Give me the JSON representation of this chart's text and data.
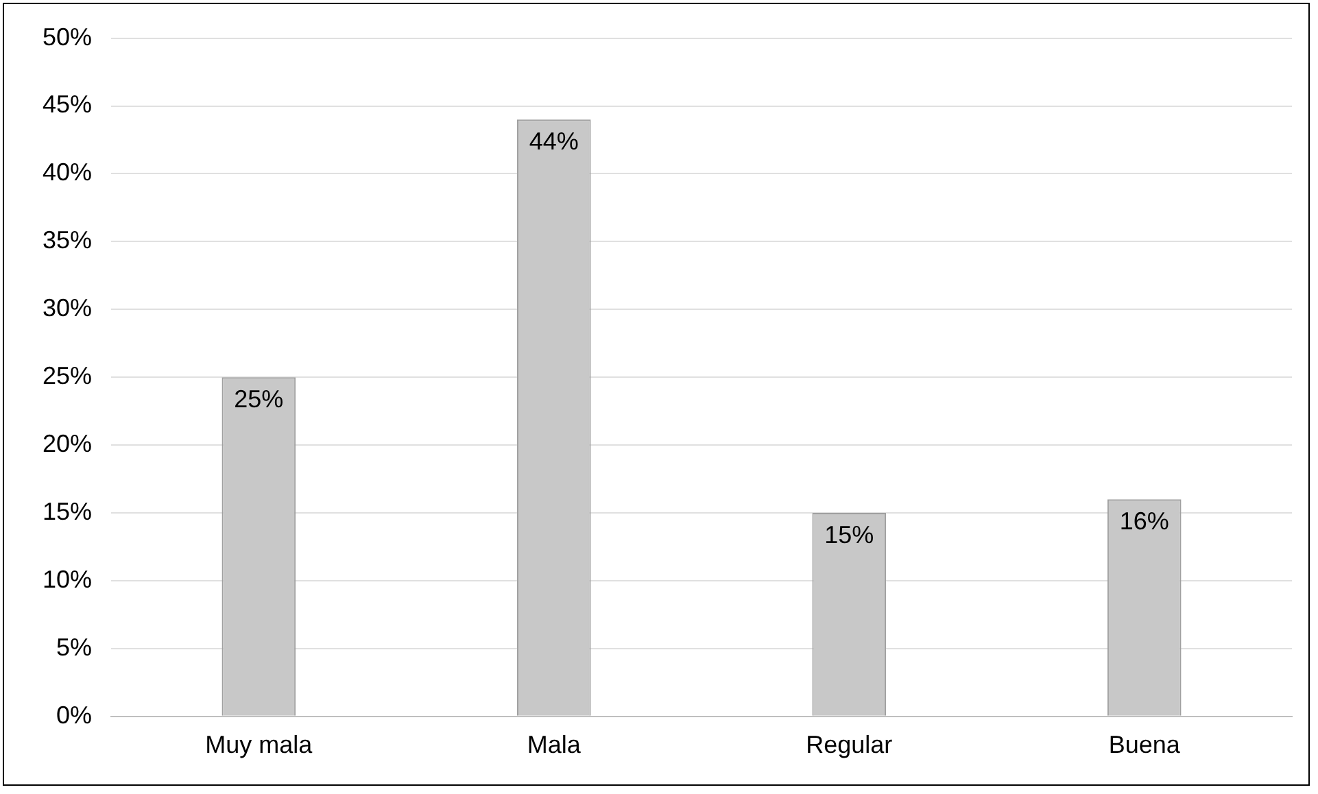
{
  "chart_data": {
    "type": "bar",
    "categories": [
      "Muy mala",
      "Mala",
      "Regular",
      "Buena"
    ],
    "values": [
      25,
      44,
      15,
      16
    ],
    "color": "#c8c8c8",
    "ylim": [
      0,
      50
    ],
    "yticks": [
      {
        "value": 0,
        "label": "0%"
      },
      {
        "value": 5,
        "label": "5%"
      },
      {
        "value": 10,
        "label": "10%"
      },
      {
        "value": 15,
        "label": "15%"
      },
      {
        "value": 20,
        "label": "20%"
      },
      {
        "value": 25,
        "label": "25%"
      },
      {
        "value": 30,
        "label": "30%"
      },
      {
        "value": 35,
        "label": "35%"
      },
      {
        "value": 40,
        "label": "40%"
      },
      {
        "value": 45,
        "label": "45%"
      },
      {
        "value": 50,
        "label": "50%"
      }
    ],
    "value_labels": [
      "25%",
      "44%",
      "15%",
      "16%"
    ],
    "grid": "y",
    "legend": false
  }
}
